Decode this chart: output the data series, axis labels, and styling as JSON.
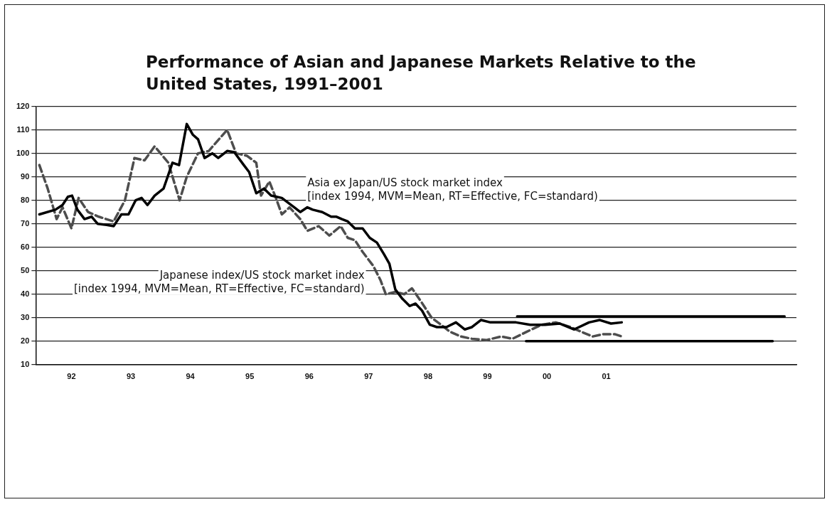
{
  "chart_data": {
    "type": "line",
    "title": "Performance of Asian and Japanese Markets Relative to the United States, 1991–2001",
    "xlim": [
      1991.4,
      2004.2
    ],
    "xticks": [
      {
        "value": 1992,
        "label": "92"
      },
      {
        "value": 1993,
        "label": "93"
      },
      {
        "value": 1994,
        "label": "94"
      },
      {
        "value": 1995,
        "label": "95"
      },
      {
        "value": 1996,
        "label": "96"
      },
      {
        "value": 1997,
        "label": "97"
      },
      {
        "value": 1998,
        "label": "98"
      },
      {
        "value": 1999,
        "label": "99"
      },
      {
        "value": 2000,
        "label": "00"
      },
      {
        "value": 2001,
        "label": "01"
      }
    ],
    "ylim": [
      10,
      120
    ],
    "yticks": [
      10,
      20,
      30,
      40,
      50,
      60,
      70,
      80,
      90,
      100,
      110,
      120
    ],
    "grid": "y",
    "legend": false,
    "marker": "none",
    "series": [
      {
        "name": "Asia ex Japan/US stock market index\n[index 1994, MVM=Mean, RT=Effective, FC=standard)",
        "color": "#000000",
        "line_style": "solid",
        "x": [
          1991.46,
          1991.73,
          1991.85,
          1991.94,
          1992.01,
          1992.1,
          1992.22,
          1992.34,
          1992.44,
          1992.59,
          1992.71,
          1992.84,
          1992.96,
          1993.08,
          1993.18,
          1993.28,
          1993.4,
          1993.55,
          1993.7,
          1993.81,
          1993.94,
          1994.04,
          1994.13,
          1994.24,
          1994.37,
          1994.47,
          1994.62,
          1994.74,
          1994.9,
          1994.99,
          1995.11,
          1995.24,
          1995.36,
          1995.54,
          1995.75,
          1995.85,
          1995.97,
          1996.06,
          1996.22,
          1996.37,
          1996.46,
          1996.55,
          1996.65,
          1996.77,
          1996.9,
          1997.02,
          1997.14,
          1997.26,
          1997.35,
          1997.45,
          1997.57,
          1997.69,
          1997.79,
          1997.9,
          1998.03,
          1998.15,
          1998.31,
          1998.47,
          1998.62,
          1998.74,
          1998.89,
          1999.05,
          1999.23,
          1999.48,
          1999.72,
          1999.97,
          2000.22,
          2000.46,
          2000.71,
          2000.89,
          2001.08,
          2001.26
        ],
        "values": [
          74,
          76,
          78,
          81.5,
          82,
          76,
          72,
          73,
          70,
          69.5,
          69,
          74,
          74,
          80,
          81,
          78,
          82,
          85,
          96,
          95,
          112.5,
          108,
          106,
          98,
          100,
          98,
          101,
          100.5,
          95,
          92,
          83,
          85,
          82,
          81,
          77,
          75,
          77,
          76,
          75,
          73,
          73,
          72,
          71,
          68,
          68,
          64,
          62,
          57,
          53,
          42,
          38,
          35,
          36,
          33,
          27,
          26,
          26,
          28,
          25,
          26,
          29,
          28,
          28,
          28,
          27,
          27,
          27.5,
          25,
          28,
          29,
          27.5,
          28
        ]
      },
      {
        "name": "Japanese index/US stock market index\n[index 1994, MVM=Mean, RT=Effective, FC=standard)",
        "color": "#4d4d4d",
        "line_style": "dashed",
        "x": [
          1991.46,
          1991.6,
          1991.75,
          1991.85,
          1992.0,
          1992.12,
          1992.28,
          1992.46,
          1992.71,
          1992.9,
          1993.06,
          1993.23,
          1993.4,
          1993.63,
          1993.82,
          1993.94,
          1994.13,
          1994.31,
          1994.62,
          1994.77,
          1994.95,
          1995.11,
          1995.19,
          1995.33,
          1995.44,
          1995.54,
          1995.67,
          1995.85,
          1995.97,
          1996.16,
          1996.34,
          1996.53,
          1996.65,
          1996.77,
          1996.9,
          1997.08,
          1997.2,
          1997.29,
          1997.45,
          1997.6,
          1997.73,
          1997.88,
          1998.06,
          1998.22,
          1998.37,
          1998.55,
          1998.74,
          1998.99,
          1999.23,
          1999.42,
          1999.66,
          1999.91,
          2000.15,
          2000.4,
          2000.58,
          2000.77,
          2000.95,
          2001.14,
          2001.26
        ],
        "values": [
          95,
          85,
          72,
          77,
          68,
          81,
          75,
          73,
          71,
          80,
          98,
          97,
          103,
          96,
          80,
          90,
          100,
          101,
          110,
          100,
          99,
          96,
          82,
          88,
          81,
          74,
          77,
          72,
          67,
          69,
          65,
          69,
          64,
          63,
          58,
          52,
          46,
          40,
          41,
          40,
          42.5,
          37,
          30,
          27,
          24,
          22,
          21,
          20.5,
          22,
          21,
          24,
          27,
          28,
          26,
          24,
          22,
          23,
          23,
          22
        ]
      },
      {
        "color": "#000000",
        "line_style": "solid",
        "x": [
          1999.5,
          2004.0
        ],
        "values": [
          30.5,
          30.5
        ]
      },
      {
        "color": "#000000",
        "line_style": "solid",
        "x": [
          1999.65,
          2003.8
        ],
        "values": [
          20,
          20
        ]
      }
    ]
  }
}
